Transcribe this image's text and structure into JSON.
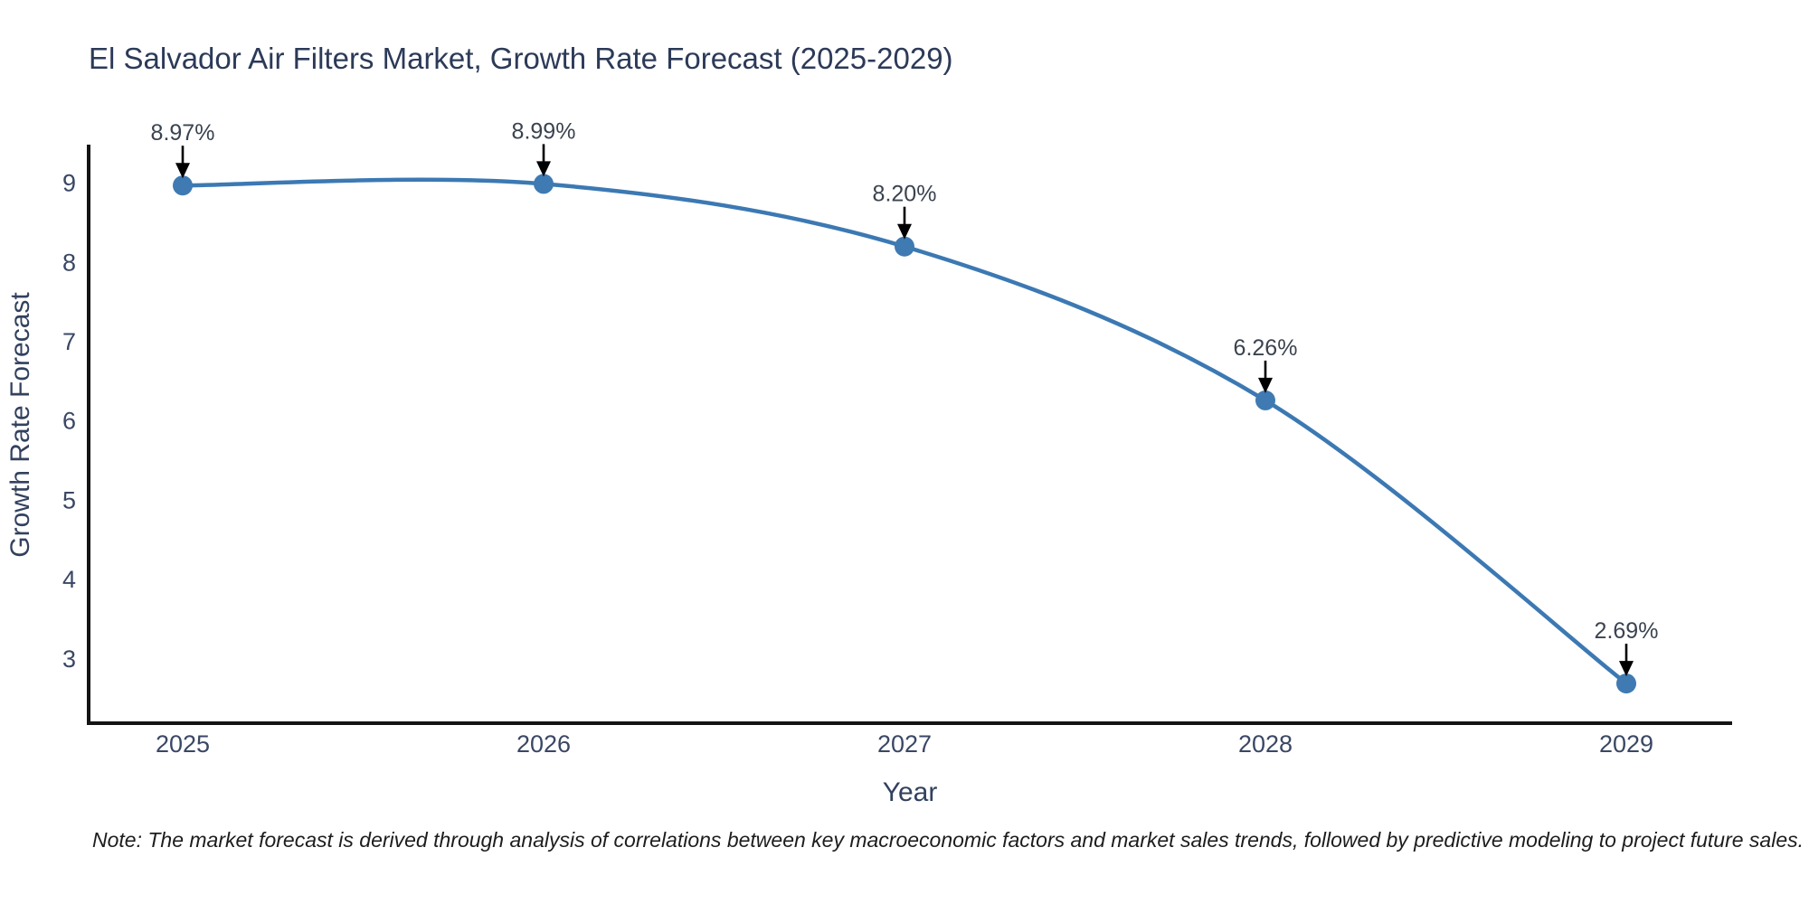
{
  "title": "El Salvador Air Filters Market, Growth Rate Forecast (2025-2029)",
  "note": "Note: The market forecast is derived through analysis of correlations between key macroeconomic factors and market sales trends, followed by predictive modeling to project future sales.",
  "chart_data": {
    "type": "line",
    "title": "El Salvador Air Filters Market, Growth Rate Forecast (2025-2029)",
    "xlabel": "Year",
    "ylabel": "Growth Rate Forecast",
    "categories": [
      "2025",
      "2026",
      "2027",
      "2028",
      "2029"
    ],
    "values": [
      8.97,
      8.99,
      8.2,
      6.26,
      2.69
    ],
    "point_labels": [
      "8.97%",
      "8.99%",
      "8.20%",
      "6.26%",
      "2.69%"
    ],
    "yticks": [
      3,
      4,
      5,
      6,
      7,
      8,
      9
    ],
    "ylim": [
      2.19,
      9.485
    ],
    "grid": false,
    "legend": false,
    "smooth": true,
    "annotations": "black arrow pointing down from each percent label to its data point",
    "colors": {
      "line": "#3c79b3",
      "marker": "#3f7ab2",
      "axis": "#141414",
      "arrow": "#000000",
      "title_text": "#2c3a58",
      "tick_text": "#3a4764",
      "annotation_text": "#3b4350",
      "background": "#ffffff"
    }
  }
}
